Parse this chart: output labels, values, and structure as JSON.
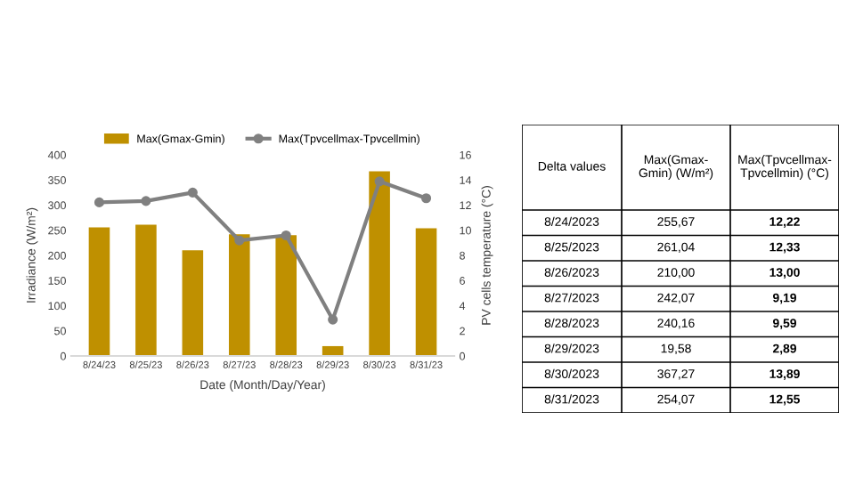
{
  "chart_data": {
    "type": "bar",
    "categories": [
      "8/24/23",
      "8/25/23",
      "8/26/23",
      "8/27/23",
      "8/28/23",
      "8/29/23",
      "8/30/23",
      "8/31/23"
    ],
    "series": [
      {
        "name": "Max(Gmax-Gmin)",
        "color": "#bf9000",
        "values": [
          255.67,
          261.04,
          210.0,
          242.07,
          240.16,
          19.58,
          367.27,
          254.07
        ]
      },
      {
        "name": "Max(Tpvcellmax-Tpvcellmin)",
        "type": "line",
        "axis": "y2",
        "color": "#808080",
        "marker": "circle",
        "values": [
          12.22,
          12.33,
          13.0,
          9.19,
          9.59,
          2.89,
          13.89,
          12.55
        ]
      }
    ],
    "xlabel": "Date (Month/Day/Year)",
    "ylabel": "Irradiance (W/m²)",
    "y2label": "PV cells temperature (°C)",
    "ylim": [
      0,
      400
    ],
    "yticks": [
      0,
      50,
      100,
      150,
      200,
      250,
      300,
      350,
      400
    ],
    "y2lim": [
      0,
      16
    ],
    "y2ticks": [
      0,
      2,
      4,
      6,
      8,
      10,
      12,
      14,
      16
    ],
    "grid": false,
    "legend": "top",
    "annotations": [
      "Delta values",
      "Max(Gmax-Gmin) (W/m²)",
      "Max(Tpvcellmax-Tpvcellmin) (°C)",
      "8/24/2023",
      "255,67",
      "12,22",
      "8/25/2023",
      "261,04",
      "12,33",
      "8/26/2023",
      "210,00",
      "13,00",
      "8/27/2023",
      "242,07",
      "9,19",
      "8/28/2023",
      "240,16",
      "9,59",
      "8/29/2023",
      "19,58",
      "2,89",
      "8/30/2023",
      "367,27",
      "13,89",
      "8/31/2023",
      "254,07",
      "12,55"
    ]
  }
}
